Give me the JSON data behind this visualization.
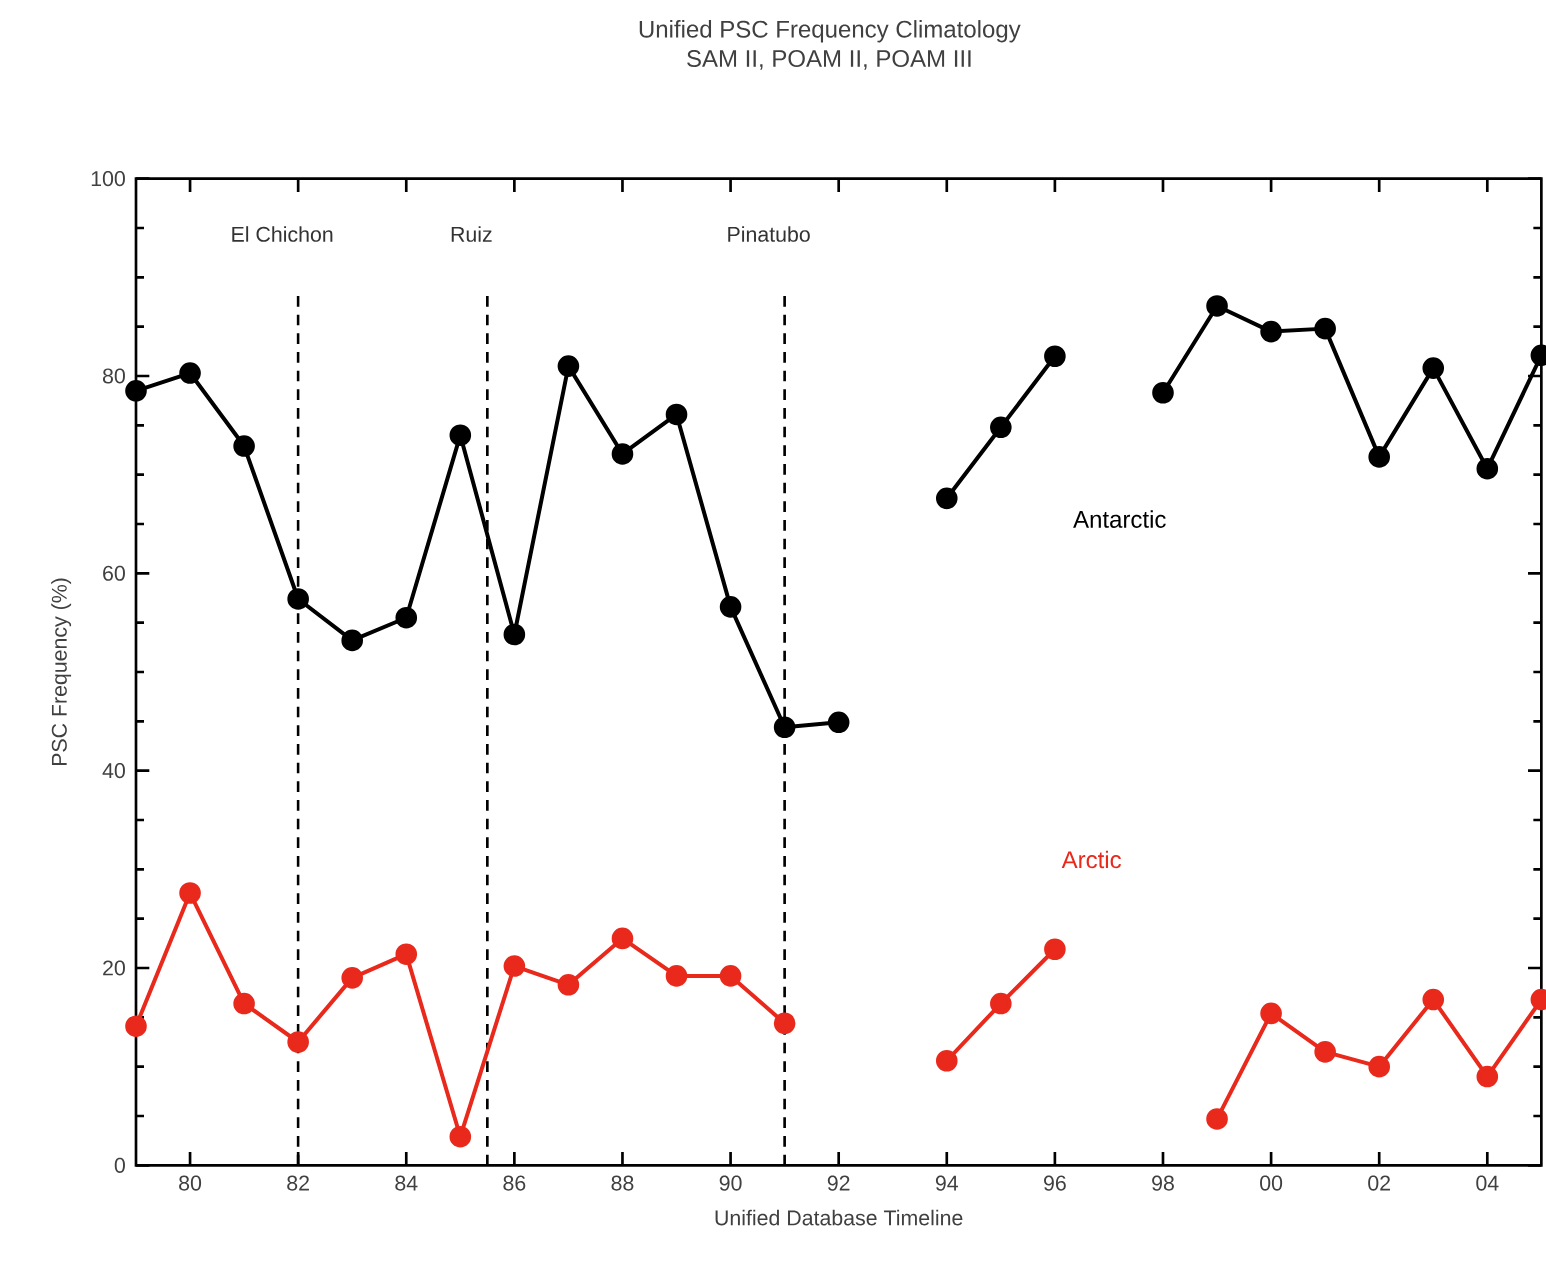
{
  "chart_data": {
    "type": "line",
    "title": "Unified PSC Frequency Climatology",
    "subtitle": "SAM II, POAM II, POAM III",
    "xlabel": "Unified Database Timeline",
    "ylabel": "PSC Frequency (%)",
    "x": [
      "1979",
      "1980",
      "1981",
      "1982",
      "1983",
      "1984",
      "1985",
      "1986",
      "1987",
      "1988",
      "1989",
      "1990",
      "1991",
      "1992",
      "1993",
      "1994",
      "1995",
      "1996",
      "1997",
      "1998",
      "1999",
      "2000",
      "2001",
      "2002",
      "2003",
      "2004",
      "2005"
    ],
    "series": [
      {
        "name": "Antarctic",
        "color": "#000000",
        "values": [
          78.5,
          80.3,
          72.9,
          57.4,
          53.2,
          55.5,
          74.0,
          53.8,
          81.0,
          72.1,
          76.1,
          56.6,
          44.4,
          44.9,
          null,
          67.6,
          74.8,
          82.0,
          null,
          78.3,
          87.1,
          84.5,
          84.8,
          71.8,
          80.8,
          70.6,
          82.1
        ]
      },
      {
        "name": "Arctic",
        "color": "#e8291c",
        "values": [
          14.1,
          27.6,
          16.4,
          12.5,
          19.0,
          21.4,
          2.9,
          20.2,
          18.3,
          23.0,
          19.2,
          19.2,
          14.4,
          null,
          null,
          10.6,
          16.4,
          21.9,
          null,
          null,
          4.7,
          15.4,
          11.5,
          10.0,
          16.8,
          9.0,
          16.8
        ]
      }
    ],
    "xlim": [
      "1979",
      "2005"
    ],
    "xticks": [
      {
        "value": "1980",
        "label": "80"
      },
      {
        "value": "1982",
        "label": "82"
      },
      {
        "value": "1984",
        "label": "84"
      },
      {
        "value": "1986",
        "label": "86"
      },
      {
        "value": "1988",
        "label": "88"
      },
      {
        "value": "1990",
        "label": "90"
      },
      {
        "value": "1992",
        "label": "92"
      },
      {
        "value": "1994",
        "label": "94"
      },
      {
        "value": "1996",
        "label": "96"
      },
      {
        "value": "1998",
        "label": "98"
      },
      {
        "value": "2000",
        "label": "00"
      },
      {
        "value": "2002",
        "label": "02"
      },
      {
        "value": "2004",
        "label": "04"
      }
    ],
    "ylim": [
      0,
      100
    ],
    "yticks": [
      0,
      20,
      40,
      60,
      80,
      100
    ],
    "ref_lines": [
      {
        "axis": "x",
        "value": "1982",
        "label": "El Chichon",
        "color": "#000000",
        "line_style": "dashed"
      },
      {
        "axis": "x",
        "value": "1985-07",
        "label": "Ruiz",
        "color": "#000000",
        "line_style": "dashed"
      },
      {
        "axis": "x",
        "value": "1991",
        "label": "Pinatubo",
        "color": "#000000",
        "line_style": "dashed"
      }
    ],
    "marker": "circle",
    "line_style": "solid",
    "grid": false
  }
}
